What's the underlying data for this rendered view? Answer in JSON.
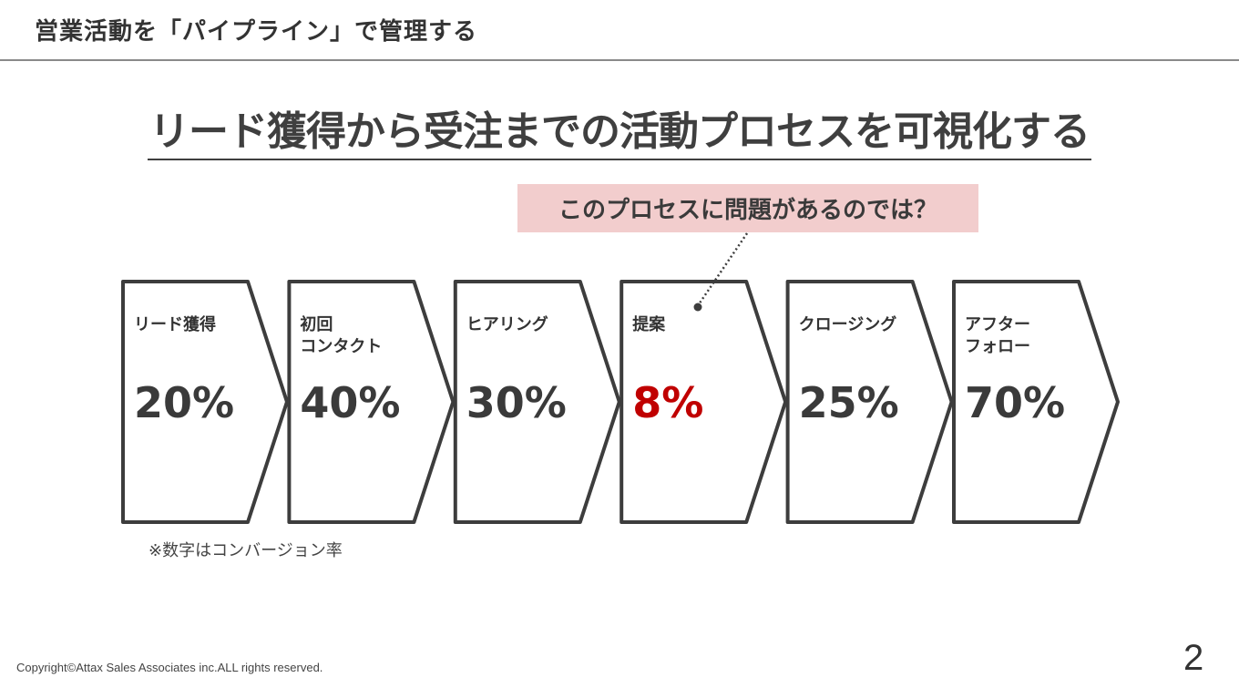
{
  "header": {
    "title": "営業活動を「パイプライン」で管理する"
  },
  "main_title": "リード獲得から受注までの活動プロセスを可視化する",
  "callout": {
    "text": "このプロセスに問題があるのでは？",
    "points_to_stage": 3
  },
  "stages": [
    {
      "label": "リード獲得",
      "rate": "20%",
      "highlight": false
    },
    {
      "label": "初回\nコンタクト",
      "rate": "40%",
      "highlight": false
    },
    {
      "label": "ヒアリング",
      "rate": "30%",
      "highlight": false
    },
    {
      "label": "提案",
      "rate": "8%",
      "highlight": true
    },
    {
      "label": "クロージング",
      "rate": "25%",
      "highlight": false
    },
    {
      "label": "アフター\nフォロー",
      "rate": "70%",
      "highlight": false
    }
  ],
  "note": "※数字はコンバージョン率",
  "footer": {
    "copyright": "Copyright©Attax Sales Associates inc.ALL rights reserved.",
    "page_number": "2"
  },
  "colors": {
    "highlight": "#c00000",
    "callout_bg": "#f2cdcd",
    "stroke": "#3d3d3d"
  }
}
